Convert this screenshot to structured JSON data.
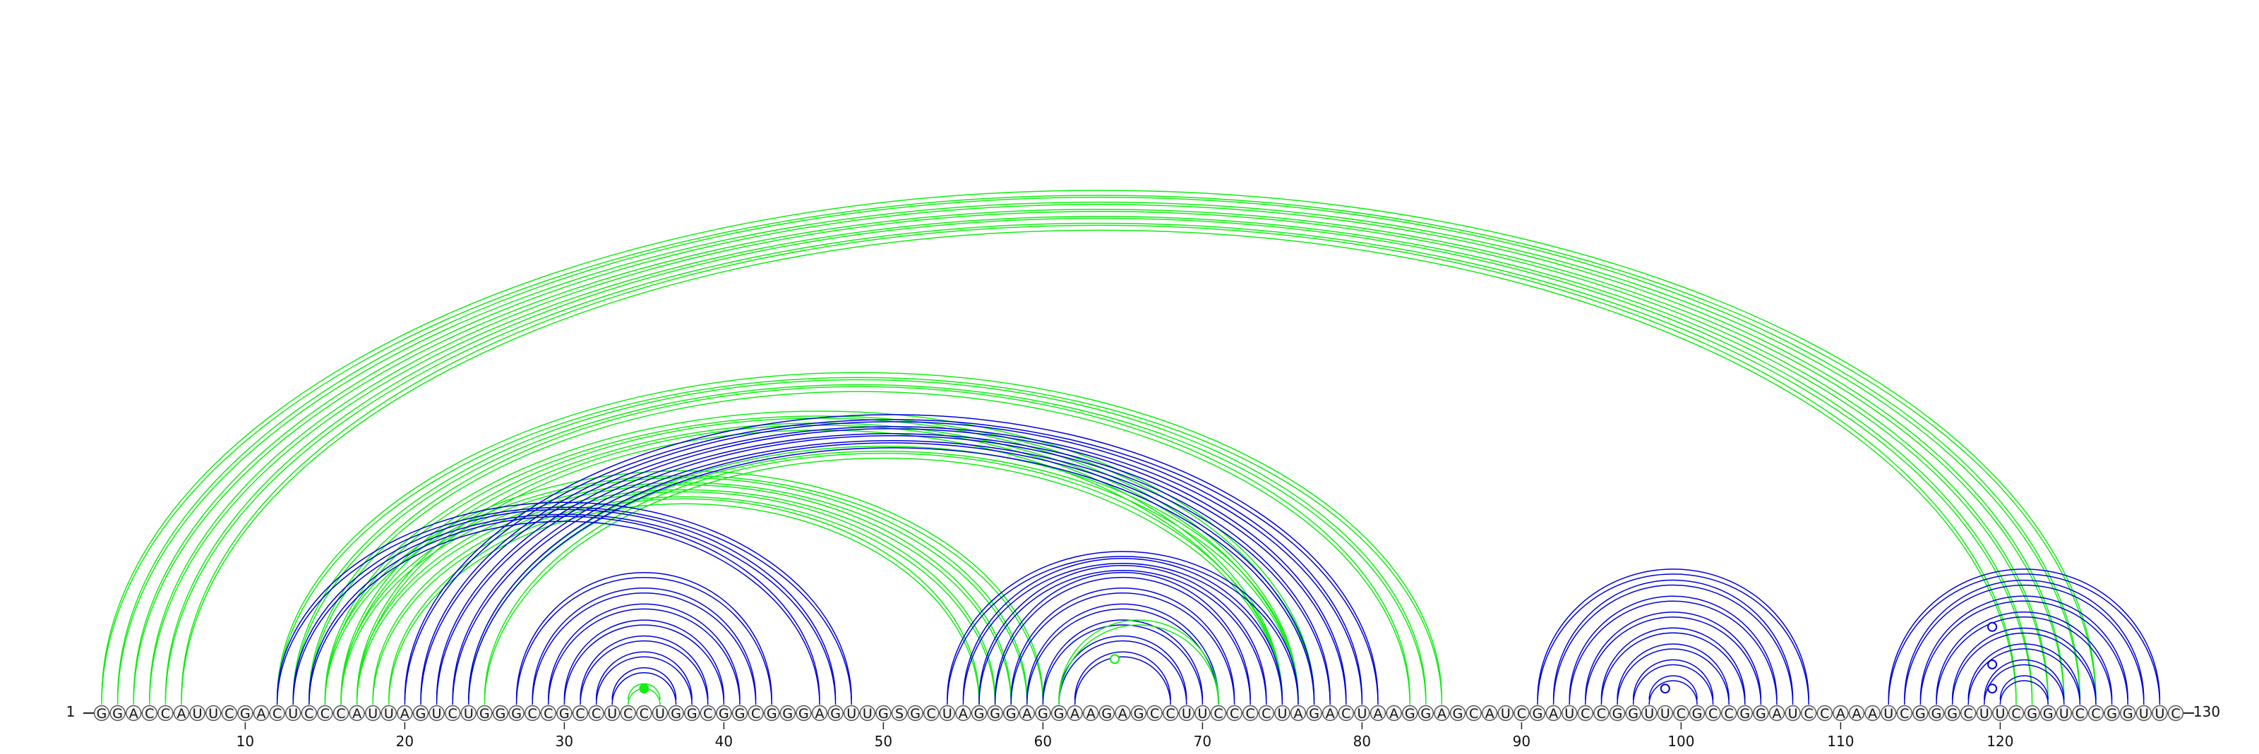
{
  "sequence": "GGACCAUUCGACUCCCAUUAGUCUGGGCCGCCUCCUGGCGGCGGGAGUUGSGCUAGGGAGGAAGAGCCUUCCCCUAGACUAAGGAGCAUCGAUCCGGUUCGCCGGAUCCAAAUCGGGCUUCGGUCCGGUUC",
  "start_label": "1",
  "end_label": "130",
  "axis_ticks": [
    {
      "pos": 10,
      "label": "10"
    },
    {
      "pos": 20,
      "label": "20"
    },
    {
      "pos": 30,
      "label": "30"
    },
    {
      "pos": 40,
      "label": "40"
    },
    {
      "pos": 50,
      "label": "50"
    },
    {
      "pos": 60,
      "label": "60"
    },
    {
      "pos": 70,
      "label": "70"
    },
    {
      "pos": 80,
      "label": "80"
    },
    {
      "pos": 90,
      "label": "90"
    },
    {
      "pos": 100,
      "label": "100"
    },
    {
      "pos": 110,
      "label": "110"
    },
    {
      "pos": 120,
      "label": "120"
    }
  ],
  "colors": {
    "green": "#11ee11",
    "blue": "#0000dd",
    "nucleotide_fill": "#f4f4f4",
    "nucleotide_stroke": "#555555",
    "text": "#111111"
  },
  "arc_sets": [
    {
      "color": "green",
      "pairs": [
        [
          1,
          126
        ],
        [
          2,
          125
        ],
        [
          3,
          124
        ],
        [
          4,
          123
        ],
        [
          5,
          122
        ],
        [
          6,
          121
        ]
      ]
    },
    {
      "color": "green",
      "pairs": [
        [
          12,
          85
        ],
        [
          13,
          84
        ],
        [
          14,
          83
        ],
        [
          15,
          77
        ],
        [
          16,
          76
        ],
        [
          17,
          75
        ]
      ]
    },
    {
      "color": "green",
      "pairs": [
        [
          15,
          60
        ],
        [
          16,
          59
        ],
        [
          17,
          58
        ],
        [
          18,
          57
        ],
        [
          19,
          56
        ]
      ]
    },
    {
      "color": "green",
      "pairs": [
        [
          24,
          76
        ],
        [
          25,
          75
        ]
      ]
    },
    {
      "color": "blue",
      "pairs": [
        [
          12,
          48
        ],
        [
          13,
          47
        ],
        [
          14,
          46
        ]
      ]
    },
    {
      "color": "blue",
      "pairs": [
        [
          20,
          81
        ],
        [
          21,
          80
        ],
        [
          22,
          79
        ],
        [
          23,
          78
        ],
        [
          24,
          77
        ]
      ]
    },
    {
      "color": "blue",
      "pairs": [
        [
          27,
          43
        ],
        [
          28,
          42
        ],
        [
          29,
          41
        ],
        [
          30,
          40
        ],
        [
          31,
          39
        ],
        [
          32,
          38
        ],
        [
          33,
          37
        ]
      ]
    },
    {
      "color": "green",
      "pairs": [
        [
          34,
          36
        ]
      ]
    },
    {
      "color": "blue",
      "pairs": [
        [
          54,
          76
        ],
        [
          55,
          75
        ],
        [
          56,
          74
        ],
        [
          57,
          73
        ],
        [
          58,
          72
        ],
        [
          59,
          71
        ],
        [
          60,
          70
        ],
        [
          61,
          69
        ],
        [
          62,
          68
        ]
      ]
    },
    {
      "color": "green",
      "pairs": [
        [
          61,
          71
        ]
      ]
    },
    {
      "color": "blue",
      "pairs": [
        [
          91,
          108
        ],
        [
          92,
          107
        ],
        [
          93,
          106
        ],
        [
          94,
          105
        ],
        [
          95,
          104
        ],
        [
          96,
          103
        ],
        [
          97,
          102
        ],
        [
          98,
          101
        ]
      ]
    },
    {
      "color": "blue",
      "pairs": [
        [
          113,
          130
        ],
        [
          114,
          129
        ],
        [
          115,
          128
        ],
        [
          116,
          127
        ],
        [
          117,
          126
        ],
        [
          118,
          125
        ],
        [
          119,
          124
        ],
        [
          120,
          123
        ]
      ]
    }
  ],
  "markers": [
    {
      "pos": 35,
      "height": 0.6,
      "color": "green",
      "filled": true
    },
    {
      "pos": 64.5,
      "height": 1.7,
      "color": "green",
      "filled": false
    },
    {
      "pos": 99,
      "height": 0.6,
      "color": "blue",
      "filled": false
    },
    {
      "pos": 119.5,
      "height": 1.5,
      "color": "blue",
      "filled": false
    },
    {
      "pos": 119.5,
      "height": 2.9,
      "color": "blue",
      "filled": false
    },
    {
      "pos": 119.5,
      "height": 0.6,
      "color": "blue",
      "filled": false
    }
  ]
}
